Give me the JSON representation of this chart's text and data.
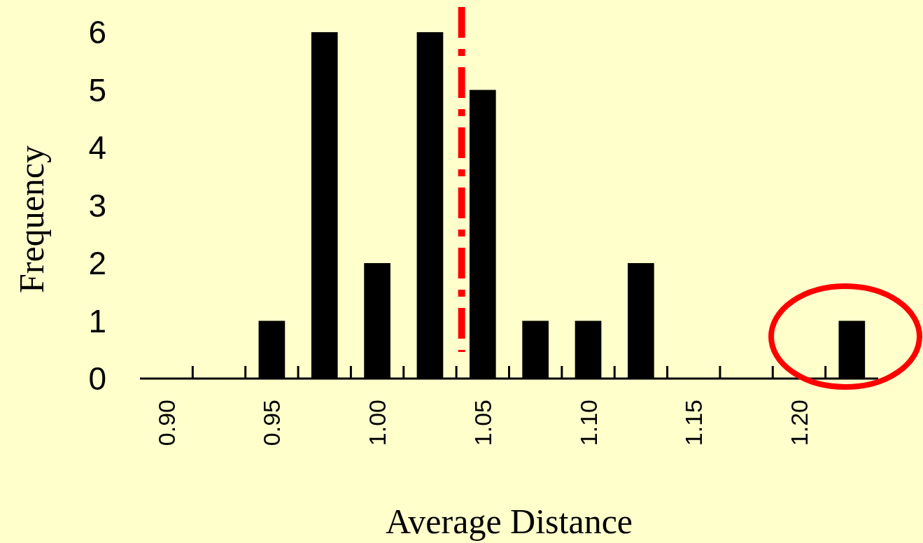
{
  "chart_data": {
    "type": "histogram",
    "xlabel": "Average Distance",
    "ylabel": "Frequency",
    "bins": [
      0.8875,
      0.9125,
      0.9375,
      0.9625,
      0.9875,
      1.0125,
      1.0375,
      1.0625,
      1.0875,
      1.1125,
      1.1375,
      1.1625,
      1.1875,
      1.2125,
      1.2375
    ],
    "values": [
      0,
      0,
      1,
      6,
      2,
      6,
      5,
      1,
      1,
      2,
      0,
      0,
      0,
      1
    ],
    "color": "#000000",
    "xlim": [
      0.8875,
      1.2375
    ],
    "xticks": [
      {
        "value": 0.9,
        "label": "0.90"
      },
      0.95,
      {
        "value": 1.0,
        "label": "1.00"
      },
      1.05,
      {
        "value": 1.1,
        "label": "1.10"
      },
      1.15,
      {
        "value": 1.2,
        "label": "1.20"
      }
    ],
    "ylim": [
      0,
      6
    ],
    "yticks": [
      0,
      1,
      2,
      3,
      4,
      5,
      6
    ],
    "ref_lines": [
      {
        "axis": "x",
        "value": 1.04,
        "color": "#ff0000",
        "line_style": "dashed"
      }
    ]
  }
}
